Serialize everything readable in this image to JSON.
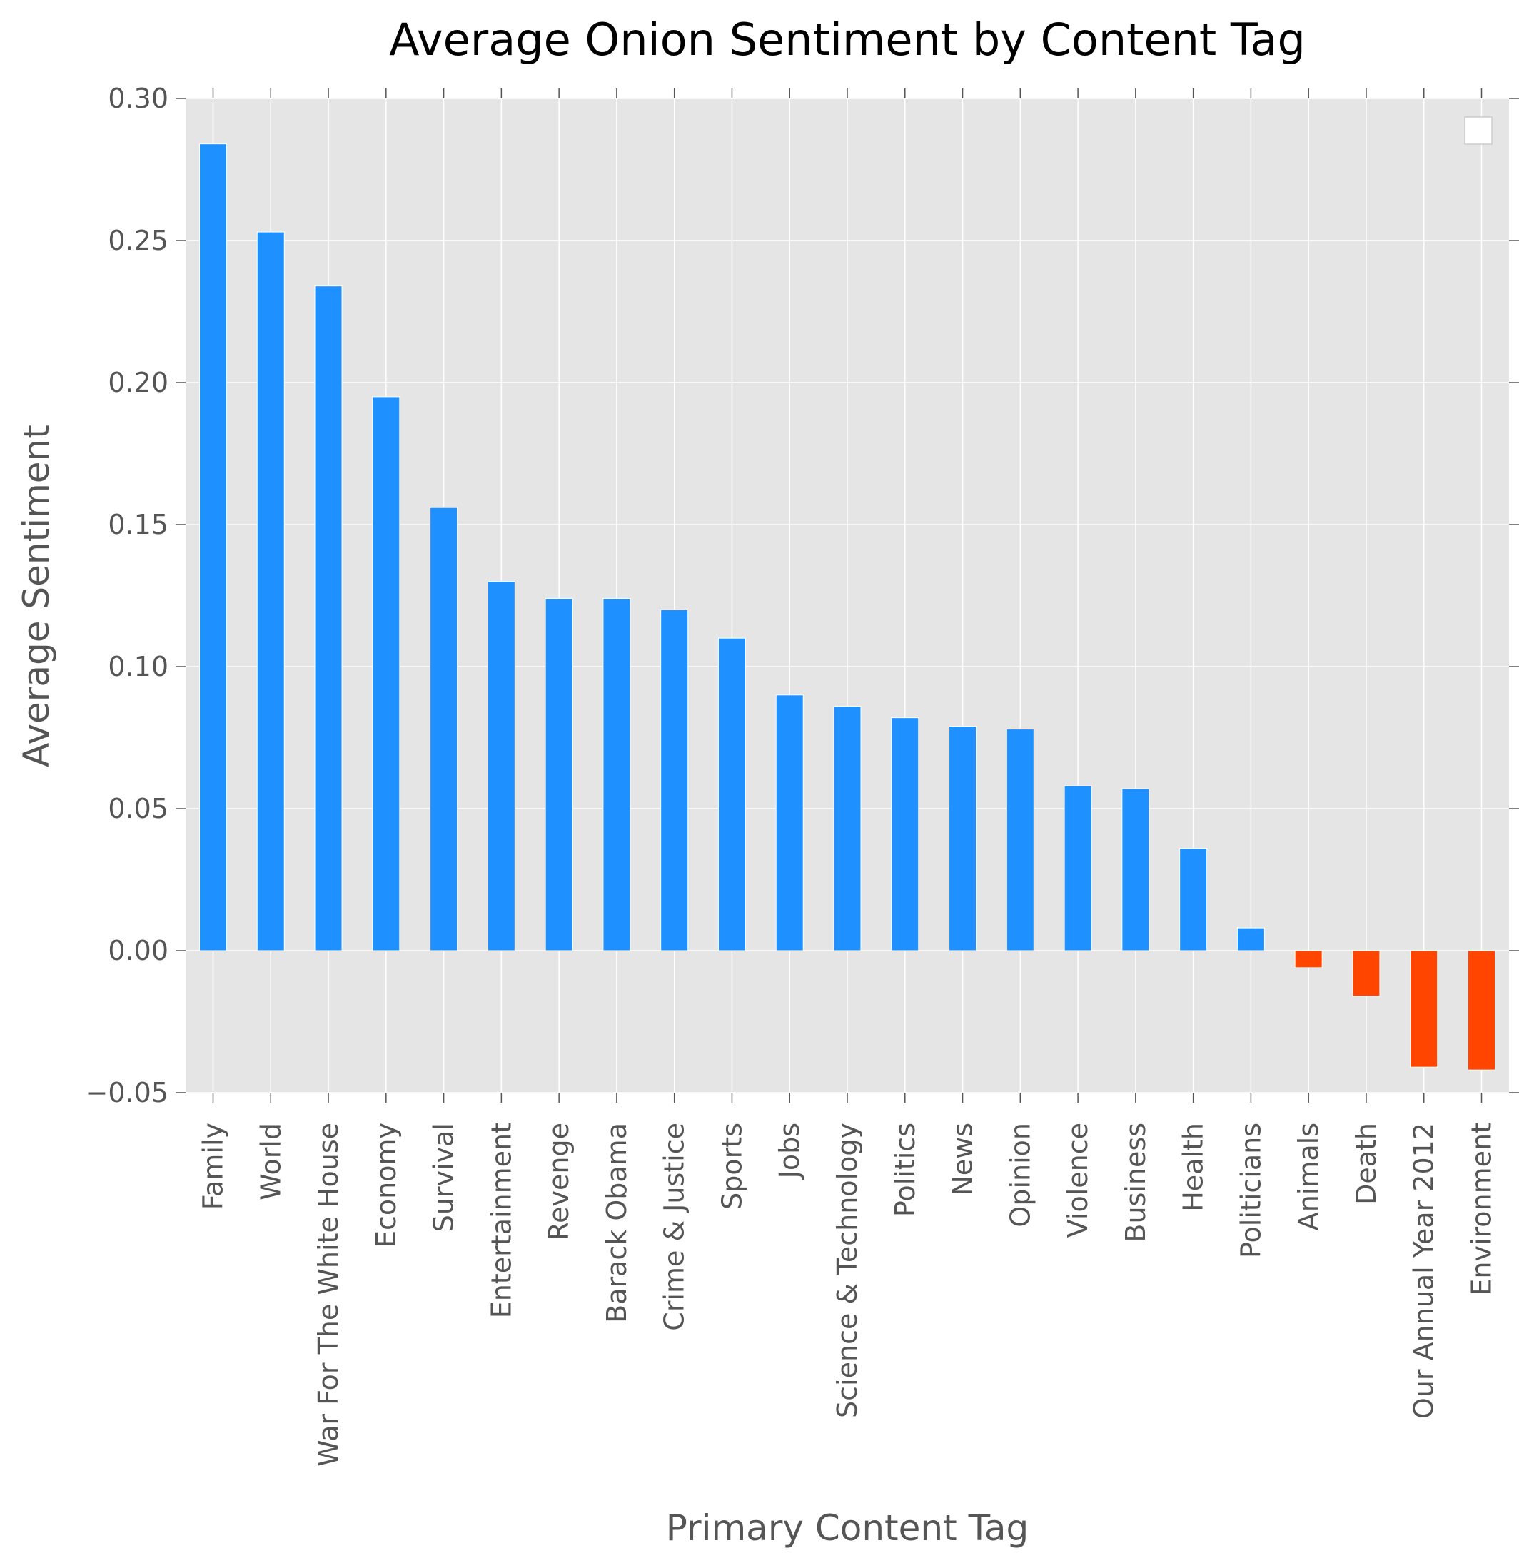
{
  "chart_data": {
    "type": "bar",
    "title": "Average Onion Sentiment by Content Tag",
    "xlabel": "Primary Content Tag",
    "ylabel": "Average Sentiment",
    "ylim": [
      -0.05,
      0.3
    ],
    "yticks": [
      "0.30",
      "0.25",
      "0.20",
      "0.15",
      "0.10",
      "0.05",
      "0.00",
      "−0.05"
    ],
    "ytick_values": [
      0.3,
      0.25,
      0.2,
      0.15,
      0.1,
      0.05,
      0.0,
      -0.05
    ],
    "grid": true,
    "legend": "top-right (empty)",
    "colors": {
      "positive": "#1e90ff",
      "negative": "#ff4500",
      "plot_background": "#e5e5e5",
      "grid": "#ffffff"
    },
    "categories": [
      "Family",
      "World",
      "War For The White House",
      "Economy",
      "Survival",
      "Entertainment",
      "Revenge",
      "Barack Obama",
      "Crime & Justice",
      "Sports",
      "Jobs",
      "Science & Technology",
      "Politics",
      "News",
      "Opinion",
      "Violence",
      "Business",
      "Health",
      "Politicians",
      "Animals",
      "Death",
      "Our Annual Year 2012",
      "Environment"
    ],
    "values": [
      0.284,
      0.253,
      0.234,
      0.195,
      0.156,
      0.13,
      0.124,
      0.124,
      0.12,
      0.11,
      0.09,
      0.086,
      0.082,
      0.079,
      0.078,
      0.058,
      0.057,
      0.036,
      0.008,
      -0.006,
      -0.016,
      -0.041,
      -0.042
    ]
  }
}
